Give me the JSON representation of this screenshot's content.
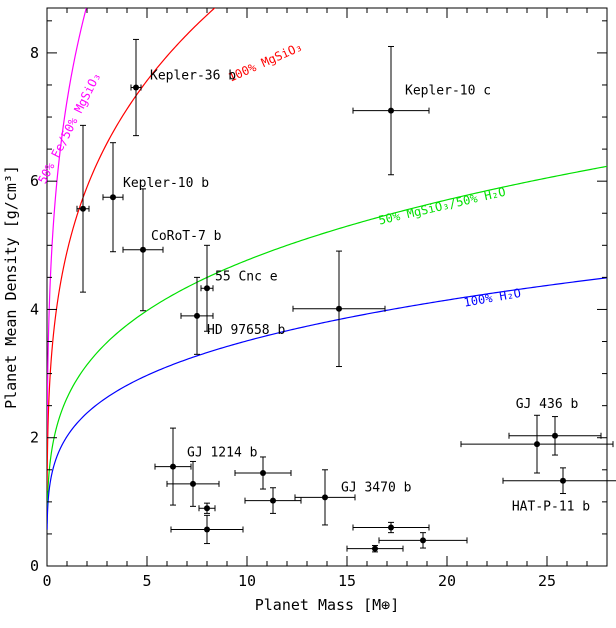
{
  "chart_data": {
    "type": "scatter",
    "title": "",
    "xlabel": "Planet Mass [M⊕]",
    "ylabel": "Planet Mean Density [g/cm³]",
    "xlim": [
      0,
      28
    ],
    "ylim": [
      0,
      8.7
    ],
    "x_ticks": [
      0,
      5,
      10,
      15,
      20,
      25
    ],
    "y_ticks": [
      0,
      2,
      4,
      6,
      8
    ],
    "grid": false,
    "legend": "none",
    "points": [
      {
        "x": 1.8,
        "y": 5.57,
        "x_err": 0.3,
        "y_err": 1.3
      },
      {
        "x": 3.3,
        "y": 5.75,
        "x_err": 0.5,
        "y_err": 0.85,
        "label": "Kepler-10 b"
      },
      {
        "x": 4.45,
        "y": 7.46,
        "x_err": 0.25,
        "y_err": 0.75,
        "label": "Kepler-36 b"
      },
      {
        "x": 4.8,
        "y": 4.93,
        "x_err": 1.0,
        "y_err": 0.95,
        "label": "CoRoT-7 b"
      },
      {
        "x": 7.5,
        "y": 3.9,
        "x_err": 0.8,
        "y_err": 0.6,
        "label": "HD 97658 b"
      },
      {
        "x": 8.0,
        "y": 4.33,
        "x_err": 0.3,
        "y_err": 0.67,
        "label": "55 Cnc e"
      },
      {
        "x": 17.2,
        "y": 7.1,
        "x_err": 1.9,
        "y_err": 1.0,
        "label": "Kepler-10 c"
      },
      {
        "x": 14.6,
        "y": 4.01,
        "x_err": 2.3,
        "y_err": 0.9
      },
      {
        "x": 6.3,
        "y": 1.55,
        "x_err": 0.9,
        "y_err": 0.6,
        "label": "GJ 1214 b"
      },
      {
        "x": 7.3,
        "y": 1.28,
        "x_err": 1.3,
        "y_err": 0.35
      },
      {
        "x": 8.0,
        "y": 0.9,
        "x_err": 0.4,
        "y_err": 0.08
      },
      {
        "x": 8.0,
        "y": 0.57,
        "x_err": 1.8,
        "y_err": 0.22
      },
      {
        "x": 10.8,
        "y": 1.45,
        "x_err": 1.4,
        "y_err": 0.25
      },
      {
        "x": 11.3,
        "y": 1.02,
        "x_err": 1.4,
        "y_err": 0.2
      },
      {
        "x": 13.9,
        "y": 1.07,
        "x_err": 1.5,
        "y_err": 0.43,
        "label": "GJ 3470 b"
      },
      {
        "x": 17.2,
        "y": 0.6,
        "x_err": 1.9,
        "y_err": 0.08
      },
      {
        "x": 16.4,
        "y": 0.27,
        "x_err": 1.4,
        "y_err": 0.05
      },
      {
        "x": 18.8,
        "y": 0.4,
        "x_err": 2.2,
        "y_err": 0.12
      },
      {
        "x": 24.5,
        "y": 1.9,
        "x_err": 3.8,
        "y_err": 0.45
      },
      {
        "x": 25.4,
        "y": 2.03,
        "x_err": 2.3,
        "y_err": 0.3,
        "label": "GJ 436 b"
      },
      {
        "x": 25.8,
        "y": 1.33,
        "x_err": 3.0,
        "y_err": 0.2,
        "label": "HAT-P-11 b"
      }
    ],
    "model_curves": [
      {
        "label": "50% Fe/50% MgSiO₃",
        "color": "#ff00ff",
        "rho_at_1": 7.25,
        "exponent": 0.27
      },
      {
        "label": "100% MgSiO₃",
        "color": "#ff0000",
        "rho_at_1": 4.9,
        "exponent": 0.27
      },
      {
        "label": "50% MgSiO₃/50% H₂O",
        "color": "#00e000",
        "rho_at_1": 2.62,
        "exponent": 0.26
      },
      {
        "label": "100% H₂O",
        "color": "#0000ff",
        "rho_at_1": 2.02,
        "exponent": 0.24
      }
    ]
  }
}
